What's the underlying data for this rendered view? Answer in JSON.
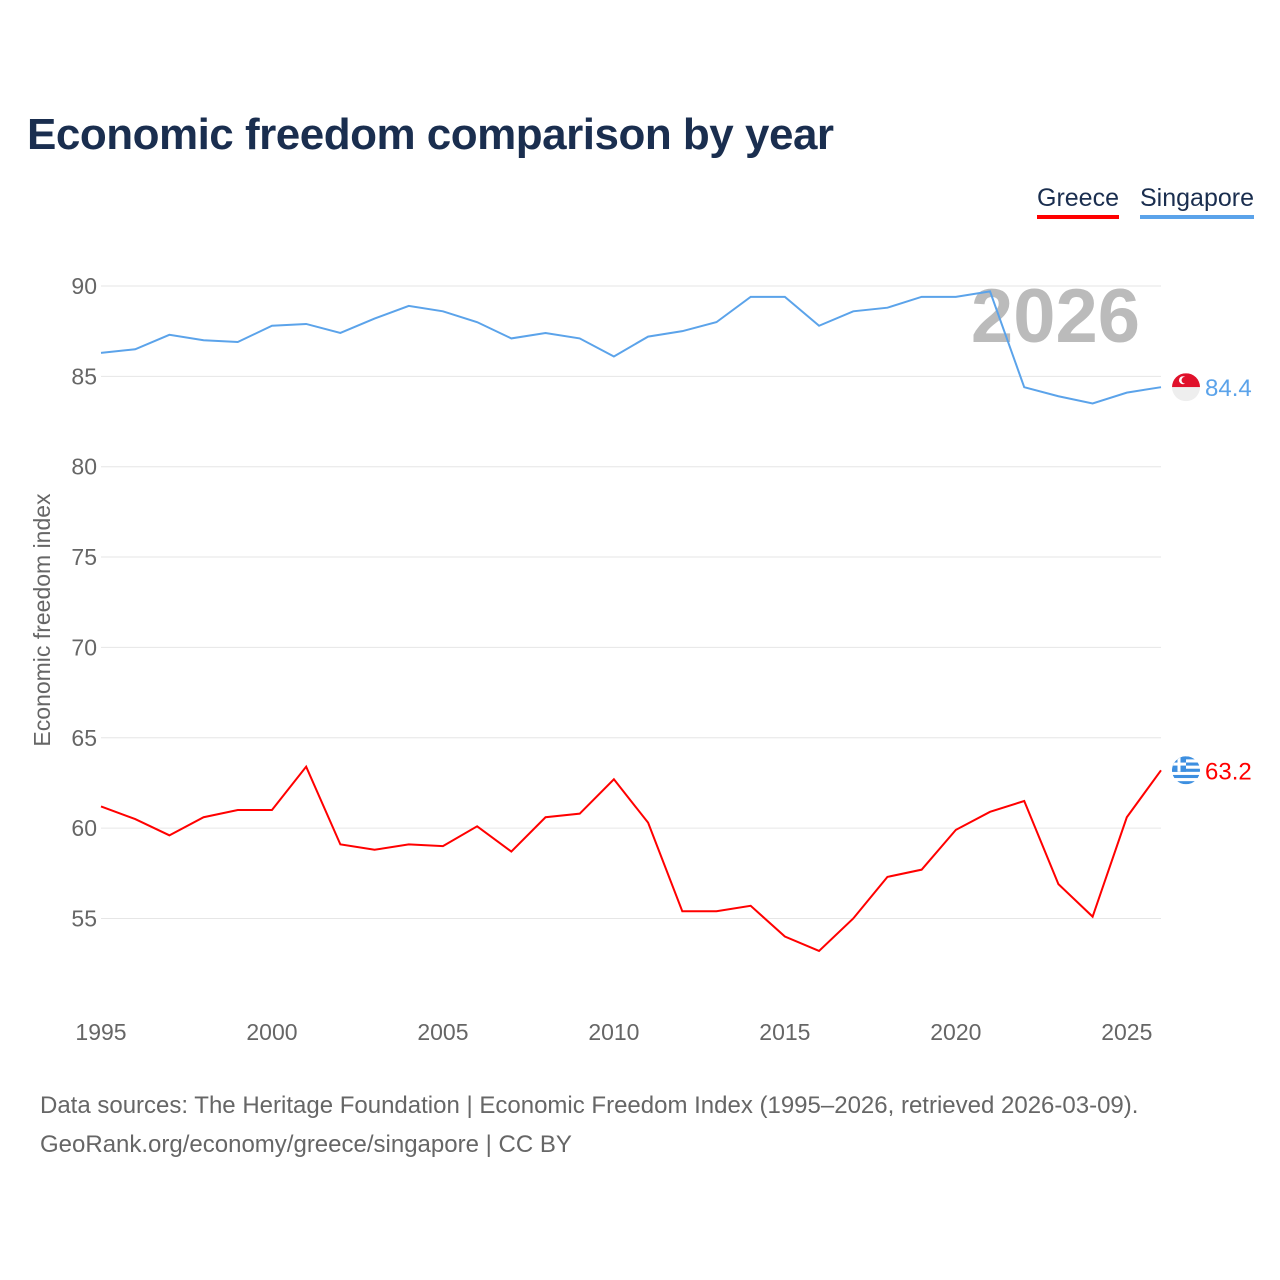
{
  "title": "Economic freedom comparison by year",
  "footer": {
    "line1": "Data sources: The Heritage Foundation | Economic Freedom Index (1995–2026, retrieved 2026-03-09).",
    "line2": "GeoRank.org/economy/greece/singapore | CC BY"
  },
  "chart_data": {
    "type": "line",
    "title": "Economic freedom comparison by year",
    "ylabel": "Economic freedom index",
    "xlabel": "",
    "year_watermark": "2026",
    "x": [
      1995,
      1996,
      1997,
      1998,
      1999,
      2000,
      2001,
      2002,
      2003,
      2004,
      2005,
      2006,
      2007,
      2008,
      2009,
      2010,
      2011,
      2012,
      2013,
      2014,
      2015,
      2016,
      2017,
      2018,
      2019,
      2020,
      2021,
      2022,
      2023,
      2024,
      2025,
      2026
    ],
    "xticks": [
      "1995",
      "2000",
      "2005",
      "2010",
      "2015",
      "2020",
      "2025"
    ],
    "yticks": [
      "55",
      "60",
      "65",
      "70",
      "75",
      "80",
      "85",
      "90"
    ],
    "ylim": [
      50,
      92
    ],
    "xlim": [
      1995,
      2026
    ],
    "legend_placement": "top-right",
    "series": [
      {
        "name": "Greece",
        "color": "#ff0000",
        "end_label": "63.2",
        "flag": "greece-flag-icon",
        "values": [
          61.2,
          60.5,
          59.6,
          60.6,
          61.0,
          61.0,
          63.4,
          59.1,
          58.8,
          59.1,
          59.0,
          60.1,
          58.7,
          60.6,
          60.8,
          62.7,
          60.3,
          55.4,
          55.4,
          55.7,
          54.0,
          53.2,
          55.0,
          57.3,
          57.7,
          59.9,
          60.9,
          61.5,
          56.9,
          55.1,
          60.6,
          63.2
        ]
      },
      {
        "name": "Singapore",
        "color": "#5ba3ea",
        "end_label": "84.4",
        "flag": "singapore-flag-icon",
        "values": [
          86.3,
          86.5,
          87.3,
          87.0,
          86.9,
          87.8,
          87.9,
          87.4,
          88.2,
          88.9,
          88.6,
          88.0,
          87.1,
          87.4,
          87.1,
          86.1,
          87.2,
          87.5,
          88.0,
          89.4,
          89.4,
          87.8,
          88.6,
          88.8,
          89.4,
          89.4,
          89.7,
          84.4,
          83.9,
          83.5,
          84.1,
          84.4
        ]
      }
    ]
  }
}
